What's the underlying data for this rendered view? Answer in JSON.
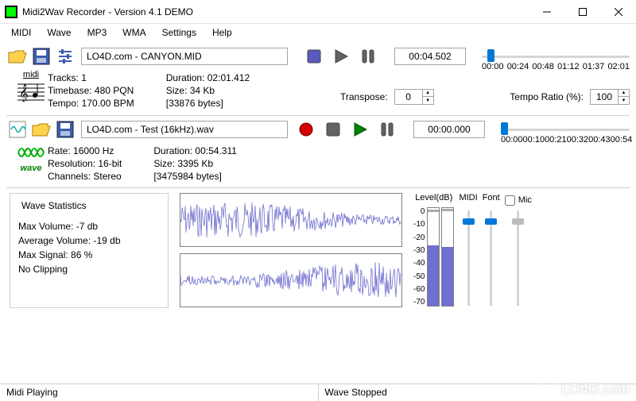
{
  "window": {
    "title": "Midi2Wav Recorder - Version 4.1 DEMO"
  },
  "menu": {
    "items": [
      "MIDI",
      "Wave",
      "MP3",
      "WMA",
      "Settings",
      "Help"
    ]
  },
  "midi": {
    "file": "LO4D.com - CANYON.MID",
    "time": "00:04.502",
    "ticks": [
      "00:00",
      "00:24",
      "00:48",
      "01:12",
      "01:37",
      "02:01"
    ],
    "slider_pos_pct": 4,
    "icon_label": "midi",
    "info1": {
      "tracks": "Tracks: 1",
      "timebase": "Timebase: 480 PQN",
      "tempo": "Tempo: 170.00 BPM"
    },
    "info2": {
      "duration": "Duration: 02:01.412",
      "size": "Size: 34 Kb",
      "bytes": "[33876 bytes]"
    },
    "transpose_label": "Transpose:",
    "transpose_val": "0",
    "tempo_ratio_label": "Tempo Ratio (%):",
    "tempo_ratio_val": "100"
  },
  "wave": {
    "file": "LO4D.com - Test (16kHz).wav",
    "time": "00:00.000",
    "ticks": [
      "00:00",
      "00:10",
      "00:21",
      "00:32",
      "00:43",
      "00:54"
    ],
    "slider_pos_pct": 0,
    "icon_label": "wave",
    "info1": {
      "rate": "Rate: 16000 Hz",
      "res": "Resolution: 16-bit",
      "ch": "Channels: Stereo"
    },
    "info2": {
      "duration": "Duration: 00:54.311",
      "size": "Size: 3395 Kb",
      "bytes": "[3475984 bytes]"
    }
  },
  "stats": {
    "title": "Wave Statistics",
    "max_vol": "Max Volume: -7 db",
    "avg_vol": "Average Volume: -19 db",
    "max_sig": "Max Signal: 86 %",
    "clip": "No Clipping"
  },
  "level": {
    "label": "Level(dB)",
    "scale": [
      "0",
      "-10",
      "-20",
      "-30",
      "-40",
      "-50",
      "-60",
      "-70"
    ],
    "bar1_pct": 62,
    "bar2_pct": 60,
    "peak1_pct": 96,
    "peak2_pct": 97
  },
  "vsliders": {
    "midi": {
      "label": "MIDI",
      "pos_pct": 8
    },
    "font": {
      "label": "Font",
      "pos_pct": 8
    },
    "mic": {
      "label": "Mic",
      "pos_pct": 8,
      "checked": false
    }
  },
  "status": {
    "left": "Midi Playing",
    "right": "Wave Stopped"
  },
  "watermark": "LO4D.com",
  "colors": {
    "accent": "#0078d7",
    "wave_color": "#6f6fcf",
    "midi_stop": "#5a5abf",
    "midi_play": "#636363",
    "midi_pause": "#636363",
    "wave_rec": "#d40000",
    "wave_stop": "#636363",
    "wave_play": "#008000",
    "wave_pause": "#636363"
  }
}
